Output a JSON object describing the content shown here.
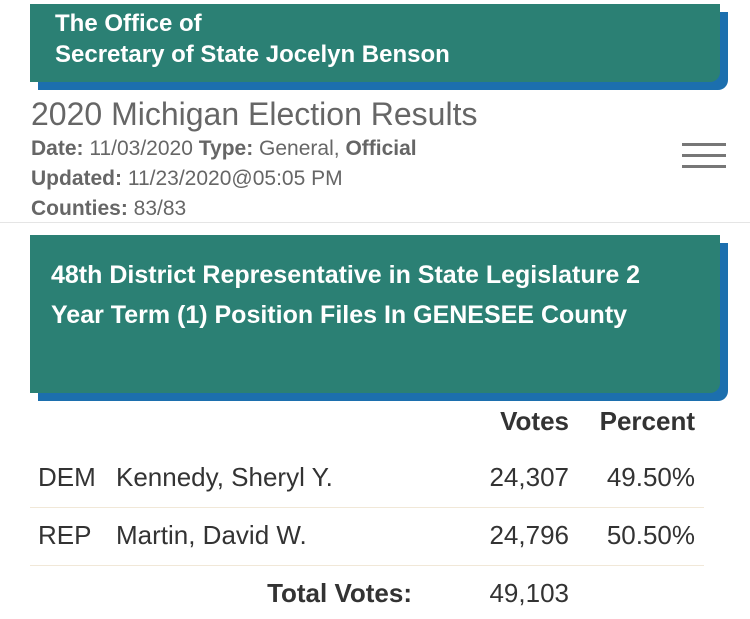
{
  "header": {
    "line1": "The Office of",
    "line2": "Secretary of State Jocelyn Benson"
  },
  "title": "2020 Michigan Election Results",
  "meta": {
    "date_label": "Date:",
    "date": "11/03/2020",
    "type_label": "Type:",
    "type": "General,",
    "status": "Official",
    "updated_label": "Updated:",
    "updated": "11/23/2020@05:05 PM",
    "counties_label": "Counties:",
    "counties": "83/83"
  },
  "race": {
    "title": "48th District Representative in State Legislature 2 Year Term (1) Position Files In GENESEE County"
  },
  "table": {
    "headers": [
      "Votes",
      "Percent"
    ],
    "rows": [
      [
        "DEM",
        "Kennedy, Sheryl Y.",
        "24,307",
        "49.50%"
      ],
      [
        "REP",
        "Martin, David W.",
        "24,796",
        "50.50%"
      ]
    ],
    "total_label": "Total Votes:",
    "total": "49,103"
  }
}
